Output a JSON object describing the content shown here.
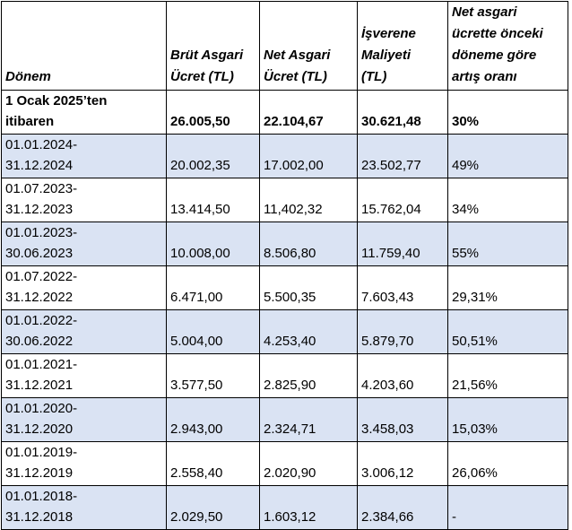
{
  "table": {
    "headers": {
      "period": "Dönem",
      "gross": [
        "Brüt Asgari",
        "Ücret (TL)"
      ],
      "net": [
        "Net Asgari",
        "Ücret (TL)"
      ],
      "employer": [
        "İşverene",
        "Maliyeti",
        "(TL)"
      ],
      "increase": [
        "Net asgari",
        "ücrette önceki",
        "döneme göre",
        "artış oranı"
      ]
    },
    "rows": [
      {
        "period": [
          "1 Ocak 2025’ten",
          "itibaren"
        ],
        "gross": "26.005,50",
        "net": "22.104,67",
        "employer": "30.621,48",
        "increase": "30%"
      },
      {
        "period": [
          "01.01.2024-",
          "31.12.2024"
        ],
        "gross": "20.002,35",
        "net": "17.002,00",
        "employer": "23.502,77",
        "increase": "49%"
      },
      {
        "period": [
          "01.07.2023-",
          "31.12.2023"
        ],
        "gross": "13.414,50",
        "net": "11,402,32",
        "employer": "15.762,04",
        "increase": "34%"
      },
      {
        "period": [
          "01.01.2023-",
          "30.06.2023"
        ],
        "gross": "10.008,00",
        "net": "8.506,80",
        "employer": "11.759,40",
        "increase": "55%"
      },
      {
        "period": [
          "01.07.2022-",
          "31.12.2022"
        ],
        "gross": "6.471,00",
        "net": "5.500,35",
        "employer": "7.603,43",
        "increase": "29,31%"
      },
      {
        "period": [
          "01.01.2022-",
          "30.06.2022"
        ],
        "gross": "5.004,00",
        "net": "4.253,40",
        "employer": "5.879,70",
        "increase": "50,51%"
      },
      {
        "period": [
          "01.01.2021-",
          "31.12.2021"
        ],
        "gross": "3.577,50",
        "net": "2.825,90",
        "employer": "4.203,60",
        "increase": "21,56%"
      },
      {
        "period": [
          "01.01.2020-",
          "31.12.2020"
        ],
        "gross": "2.943,00",
        "net": "2.324,71",
        "employer": "3.458,03",
        "increase": "15,03%"
      },
      {
        "period": [
          "01.01.2019-",
          "31.12.2019"
        ],
        "gross": "2.558,40",
        "net": "2.020,90",
        "employer": "3.006,12",
        "increase": "26,06%"
      },
      {
        "period": [
          "01.01.2018-",
          "31.12.2018"
        ],
        "gross": "2.029,50",
        "net": "1.603,12",
        "employer": "2.384,66",
        "increase": "-"
      }
    ],
    "colors": {
      "band": "#dae3f3",
      "plain": "#ffffff",
      "border": "#000000"
    }
  }
}
